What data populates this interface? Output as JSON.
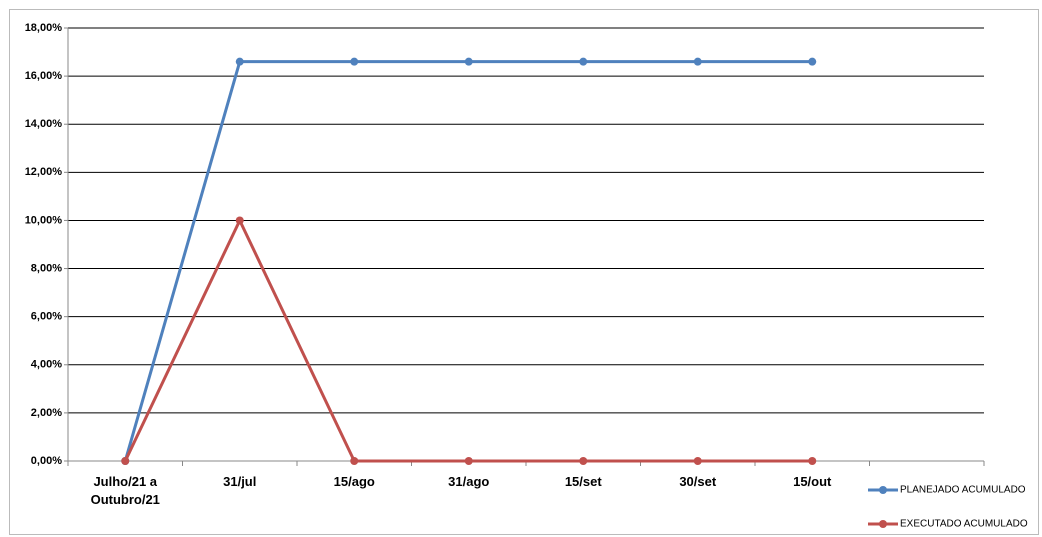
{
  "chart_data": {
    "type": "line",
    "categories": [
      "Julho/21 a Outubro/21",
      "31/jul",
      "15/ago",
      "31/ago",
      "15/set",
      "30/set",
      "15/out",
      null
    ],
    "series": [
      {
        "name": "PLANEJADO ACUMULADO",
        "color": "#4f81bd",
        "values": [
          0,
          16.6,
          16.6,
          16.6,
          16.6,
          16.6,
          16.6,
          null
        ]
      },
      {
        "name": "EXECUTADO ACUMULADO",
        "color": "#c0504d",
        "values": [
          0,
          10,
          0,
          0,
          0,
          0,
          0,
          null
        ]
      }
    ],
    "ylim": [
      0,
      18
    ],
    "yticks": [
      {
        "value": 0,
        "label": "0,00%"
      },
      {
        "value": 2,
        "label": "2,00%"
      },
      {
        "value": 4,
        "label": "4,00%"
      },
      {
        "value": 6,
        "label": "6,00%"
      },
      {
        "value": 8,
        "label": "8,00%"
      },
      {
        "value": 10,
        "label": "10,00%"
      },
      {
        "value": 12,
        "label": "12,00%"
      },
      {
        "value": 14,
        "label": "14,00%"
      },
      {
        "value": 16,
        "label": "16,00%"
      },
      {
        "value": 18,
        "label": "18,00%"
      }
    ],
    "grid": true,
    "legend": "right"
  }
}
